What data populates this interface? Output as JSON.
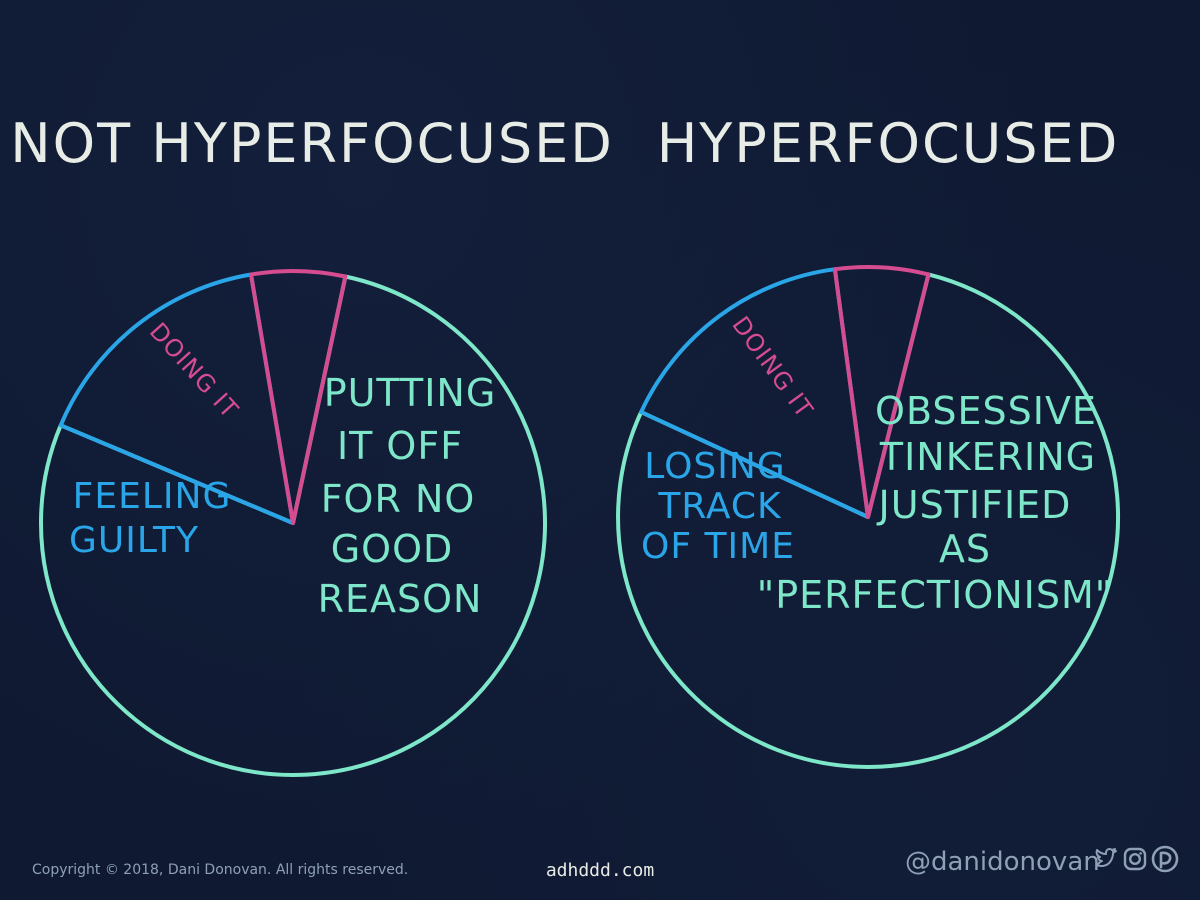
{
  "chart_data": [
    {
      "type": "pie",
      "title": "NOT HYPERFOCUSED",
      "categories": [
        "PUTTING IT OFF FOR NO GOOD REASON",
        "FEELING GUILTY",
        "DOING IT"
      ],
      "values": [
        78,
        16,
        6
      ],
      "colors": [
        "#7ee6c9",
        "#2aa6e8",
        "#d64c91"
      ],
      "labels": [
        [
          "PUTTING",
          "IT OFF",
          "FOR NO",
          "GOOD",
          "REASON"
        ],
        [
          "FEELING",
          "GUILTY"
        ],
        [
          "DOING IT"
        ]
      ]
    },
    {
      "type": "pie",
      "title": "HYPERFOCUSED",
      "categories": [
        "OBSESSIVE TINKERING JUSTIFIED AS \"PERFECTIONISM\"",
        "LOSING TRACK OF TIME",
        "DOING IT"
      ],
      "values": [
        78,
        16,
        6
      ],
      "colors": [
        "#7ee6c9",
        "#2aa6e8",
        "#d64c91"
      ],
      "labels": [
        [
          "OBSESSIVE",
          "TINKERING",
          "JUSTIFIED",
          "AS",
          "\"PERFECTIONISM\""
        ],
        [
          "LOSING",
          "TRACK",
          "OF TIME"
        ],
        [
          "DOING IT"
        ]
      ]
    }
  ],
  "footer": {
    "copyright": "Copyright © 2018, Dani Donovan. All rights reserved.",
    "site": "adhddd.com",
    "handle": "@danidonovan"
  },
  "colors": {
    "background": "#0f1932",
    "title": "#e8ece6",
    "muted": "#8ea0b4"
  }
}
